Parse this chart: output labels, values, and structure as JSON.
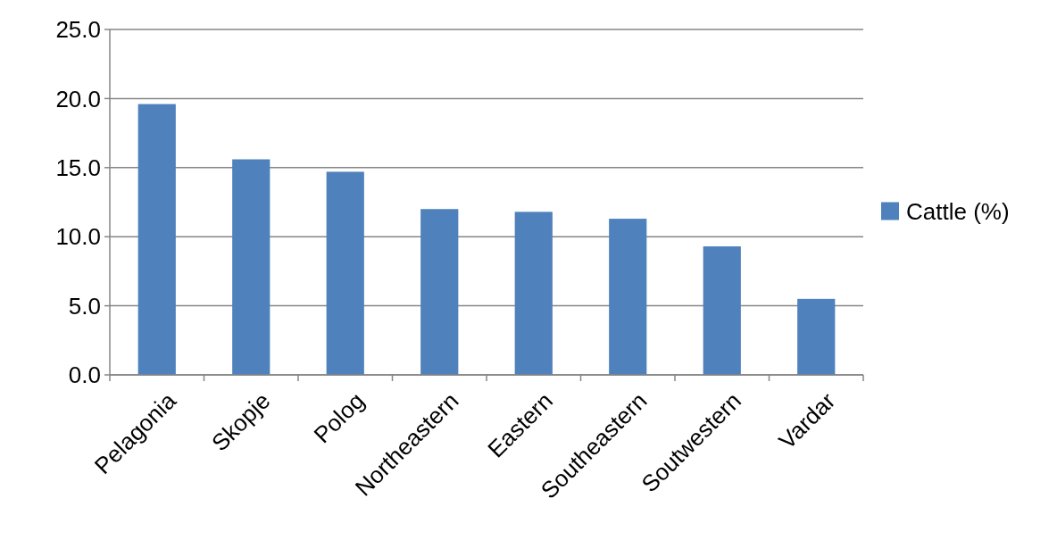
{
  "chart_data": {
    "type": "bar",
    "categories": [
      "Pelagonia",
      "Skopje",
      "Polog",
      "Northeastern",
      "Eastern",
      "Southeastern",
      "Soutwestern",
      "Vardar"
    ],
    "series": [
      {
        "name": "Cattle (%)",
        "color": "#4f81bd",
        "values": [
          19.6,
          15.6,
          14.7,
          12.0,
          11.8,
          11.3,
          9.3,
          5.5
        ]
      }
    ],
    "ylim": [
      0,
      25
    ],
    "yticks": [
      {
        "value": 0,
        "label": "0.0"
      },
      {
        "value": 5,
        "label": "5.0"
      },
      {
        "value": 10,
        "label": "10.0"
      },
      {
        "value": 15,
        "label": "15.0"
      },
      {
        "value": 20,
        "label": "20.0"
      },
      {
        "value": 25,
        "label": "25.0"
      }
    ],
    "grid": "y",
    "legend": "right"
  }
}
